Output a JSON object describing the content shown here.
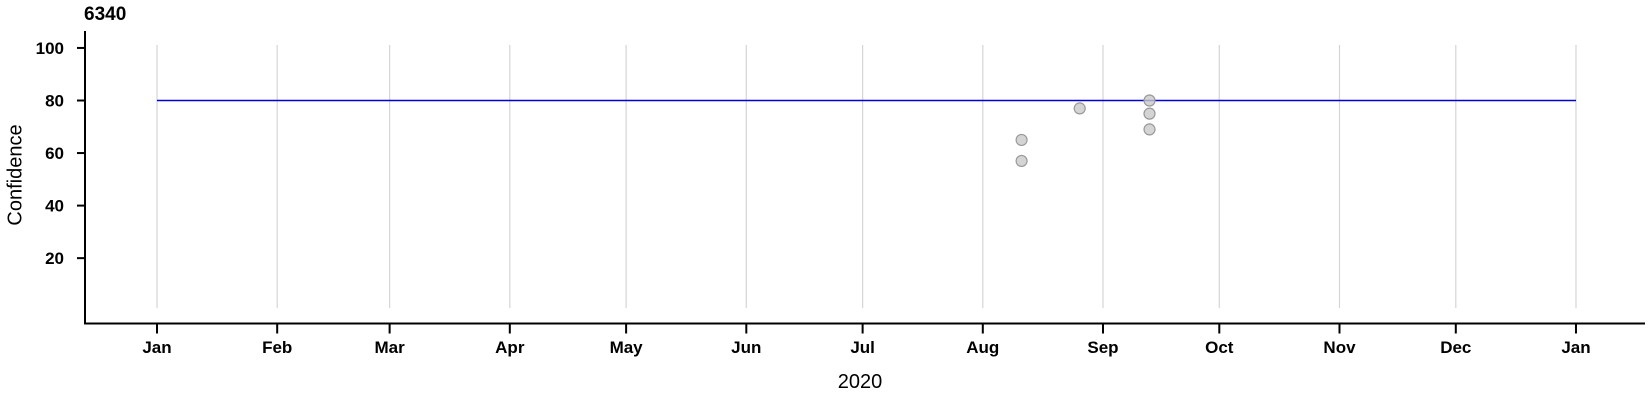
{
  "chart_data": {
    "type": "scatter",
    "title": "6340",
    "xlabel": "2020",
    "ylabel": "Confidence",
    "x_axis": {
      "start_date": "2020-01-01",
      "end_date": "2021-01-01",
      "tick_labels": [
        "Jan",
        "Feb",
        "Mar",
        "Apr",
        "May",
        "Jun",
        "Jul",
        "Aug",
        "Sep",
        "Oct",
        "Nov",
        "Dec",
        "Jan"
      ],
      "grid": true
    },
    "y_axis": {
      "ticks": [
        20,
        40,
        60,
        80,
        100
      ],
      "ylim": [
        0,
        105
      ],
      "grid": false
    },
    "reference_line": {
      "y": 80,
      "color": "#0000D2"
    },
    "points": [
      {
        "date": "2020-08-11",
        "confidence": 65
      },
      {
        "date": "2020-08-11",
        "confidence": 57
      },
      {
        "date": "2020-08-26",
        "confidence": 77
      },
      {
        "date": "2020-09-13",
        "confidence": 80
      },
      {
        "date": "2020-09-13",
        "confidence": 75
      },
      {
        "date": "2020-09-13",
        "confidence": 69
      }
    ],
    "style": {
      "point_fill": "#C9C9C9",
      "point_stroke": "#999999",
      "point_opacity": 0.8,
      "grid_color": "#D5D5D5",
      "axis_color": "#000000"
    }
  }
}
